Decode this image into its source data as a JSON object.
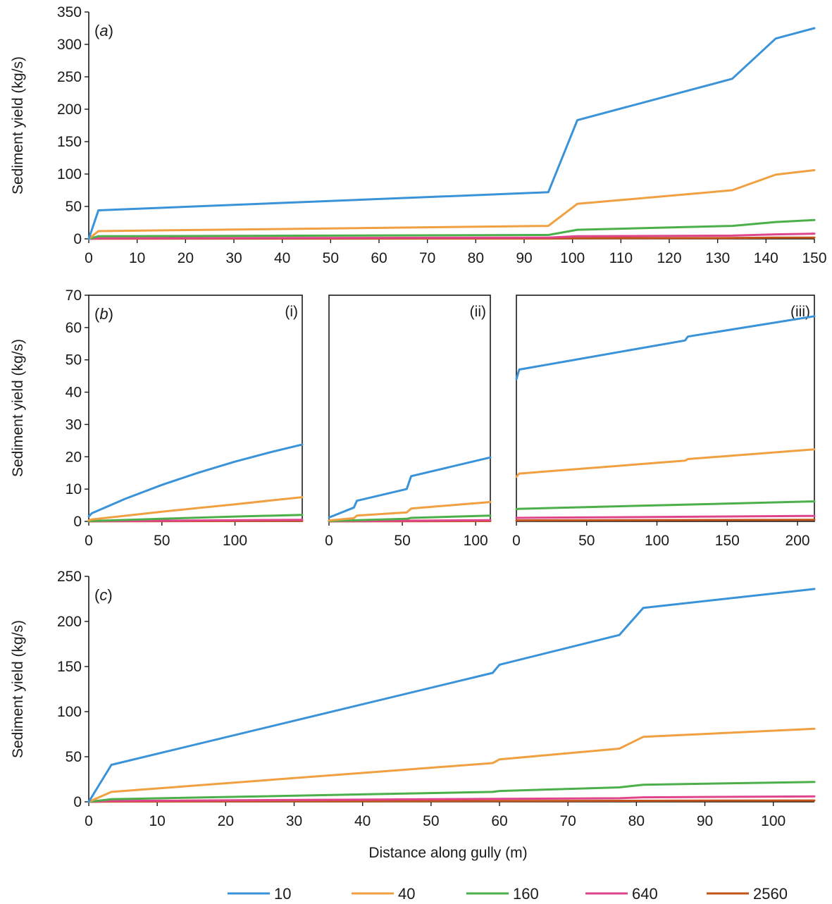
{
  "colors": {
    "10": "#3a93d8",
    "40": "#f0a040",
    "160": "#4cb04a",
    "640": "#e0458c",
    "2560": "#c0541a",
    "axis": "#1a1a1a"
  },
  "legend": {
    "items": [
      "10",
      "40",
      "160",
      "640",
      "2560"
    ]
  },
  "x_axis_label": "Distance along gully (m)",
  "chart_data": [
    {
      "id": "a",
      "type": "line",
      "panel_prefix": "(",
      "panel_letter": "a",
      "panel_suffix": ")",
      "ylabel": "Sediment yield (kg/s)",
      "xlim": [
        0,
        150
      ],
      "ylim": [
        0,
        350
      ],
      "xticks": [
        0,
        10,
        20,
        30,
        40,
        50,
        60,
        70,
        80,
        90,
        100,
        110,
        120,
        130,
        140,
        150
      ],
      "yticks": [
        0,
        50,
        100,
        150,
        200,
        250,
        300,
        350
      ],
      "series": [
        {
          "name": "10",
          "x": [
            0,
            2,
            95,
            101,
            133,
            142,
            150
          ],
          "y": [
            0,
            44,
            72,
            183,
            247,
            309,
            325
          ]
        },
        {
          "name": "40",
          "x": [
            0,
            2,
            95,
            101,
            133,
            142,
            150
          ],
          "y": [
            0,
            12,
            20,
            54,
            75,
            99,
            106
          ]
        },
        {
          "name": "160",
          "x": [
            0,
            2,
            95,
            101,
            133,
            142,
            150
          ],
          "y": [
            0,
            4,
            6,
            14,
            20,
            26,
            29
          ]
        },
        {
          "name": "640",
          "x": [
            0,
            2,
            95,
            101,
            133,
            142,
            150
          ],
          "y": [
            0,
            1,
            2,
            4,
            5,
            7,
            8
          ]
        },
        {
          "name": "2560",
          "x": [
            0,
            2,
            95,
            101,
            133,
            142,
            150
          ],
          "y": [
            0,
            0.3,
            0.5,
            1,
            1.3,
            1.8,
            2
          ]
        }
      ]
    },
    {
      "id": "b-i",
      "type": "line",
      "panel_prefix": "(",
      "panel_letter": "b",
      "panel_suffix": ")",
      "sub_label": "(i)",
      "ylabel": "Sediment yield (kg/s)",
      "xlim": [
        0,
        146
      ],
      "ylim": [
        0,
        70
      ],
      "xticks": [
        0,
        50,
        100
      ],
      "yticks": [
        0,
        10,
        20,
        30,
        40,
        50,
        60,
        70
      ],
      "series": [
        {
          "name": "10",
          "x": [
            0,
            2,
            25,
            50,
            75,
            100,
            125,
            146
          ],
          "y": [
            1.5,
            2.5,
            7,
            11.3,
            15.1,
            18.5,
            21.5,
            23.8
          ]
        },
        {
          "name": "40",
          "x": [
            0,
            2,
            50,
            100,
            146
          ],
          "y": [
            0.3,
            0.6,
            3,
            5.3,
            7.5
          ]
        },
        {
          "name": "160",
          "x": [
            0,
            50,
            100,
            146
          ],
          "y": [
            0.1,
            0.8,
            1.5,
            2
          ]
        },
        {
          "name": "640",
          "x": [
            0,
            146
          ],
          "y": [
            0.05,
            0.5
          ]
        },
        {
          "name": "2560",
          "x": [
            0,
            146
          ],
          "y": [
            0.02,
            0.15
          ]
        }
      ]
    },
    {
      "id": "b-ii",
      "type": "line",
      "sub_label": "(ii)",
      "xlim": [
        0,
        110
      ],
      "ylim": [
        0,
        70
      ],
      "xticks": [
        0,
        50,
        100
      ],
      "yticks": [],
      "series": [
        {
          "name": "10",
          "x": [
            0,
            17,
            19,
            53,
            56,
            110
          ],
          "y": [
            1.2,
            4.3,
            6.4,
            10,
            14,
            19.8
          ]
        },
        {
          "name": "40",
          "x": [
            0,
            17,
            19,
            53,
            56,
            110
          ],
          "y": [
            0.3,
            1,
            1.8,
            2.8,
            4,
            6
          ]
        },
        {
          "name": "160",
          "x": [
            0,
            53,
            56,
            110
          ],
          "y": [
            0.1,
            0.8,
            1.1,
            1.8
          ]
        },
        {
          "name": "640",
          "x": [
            0,
            110
          ],
          "y": [
            0.05,
            0.4
          ]
        },
        {
          "name": "2560",
          "x": [
            0,
            110
          ],
          "y": [
            0.02,
            0.1
          ]
        }
      ]
    },
    {
      "id": "b-iii",
      "type": "line",
      "sub_label": "(iii)",
      "xlim": [
        0,
        212
      ],
      "ylim": [
        0,
        70
      ],
      "xticks": [
        0,
        50,
        100,
        150,
        200
      ],
      "yticks": [],
      "series": [
        {
          "name": "10",
          "x": [
            0,
            2,
            120,
            122,
            212
          ],
          "y": [
            44,
            47,
            56,
            57.2,
            63.5
          ]
        },
        {
          "name": "40",
          "x": [
            0,
            2,
            120,
            122,
            212
          ],
          "y": [
            13.8,
            14.8,
            18.8,
            19.3,
            22.3
          ]
        },
        {
          "name": "160",
          "x": [
            0,
            2,
            212
          ],
          "y": [
            3.8,
            3.9,
            6.2
          ]
        },
        {
          "name": "640",
          "x": [
            0,
            212
          ],
          "y": [
            1.1,
            1.7
          ]
        },
        {
          "name": "2560",
          "x": [
            0,
            212
          ],
          "y": [
            0.3,
            0.5
          ]
        }
      ]
    },
    {
      "id": "c",
      "type": "line",
      "panel_prefix": "(",
      "panel_letter": "c",
      "panel_suffix": ")",
      "ylabel": "Sediment yield (kg/s)",
      "xlabel": "Distance along gully (m)",
      "xlim": [
        0,
        106
      ],
      "ylim": [
        0,
        250
      ],
      "xticks": [
        0,
        10,
        20,
        30,
        40,
        50,
        60,
        70,
        80,
        90,
        100
      ],
      "yticks": [
        0,
        50,
        100,
        150,
        200,
        250
      ],
      "series": [
        {
          "name": "10",
          "x": [
            0,
            3.3,
            59,
            60,
            77.5,
            81,
            106
          ],
          "y": [
            0,
            41,
            143,
            152,
            185,
            215,
            236
          ]
        },
        {
          "name": "40",
          "x": [
            0,
            3.3,
            59,
            60,
            77.5,
            81,
            106
          ],
          "y": [
            0,
            11,
            43,
            47,
            59,
            72,
            81
          ]
        },
        {
          "name": "160",
          "x": [
            0,
            3.3,
            59,
            60,
            77.5,
            81,
            106
          ],
          "y": [
            0,
            3,
            11,
            12,
            16,
            19,
            22
          ]
        },
        {
          "name": "640",
          "x": [
            0,
            3.3,
            77.5,
            81,
            106
          ],
          "y": [
            0,
            1,
            4,
            5,
            6
          ]
        },
        {
          "name": "2560",
          "x": [
            0,
            3.3,
            106
          ],
          "y": [
            0,
            0.3,
            1.5
          ]
        }
      ]
    }
  ]
}
